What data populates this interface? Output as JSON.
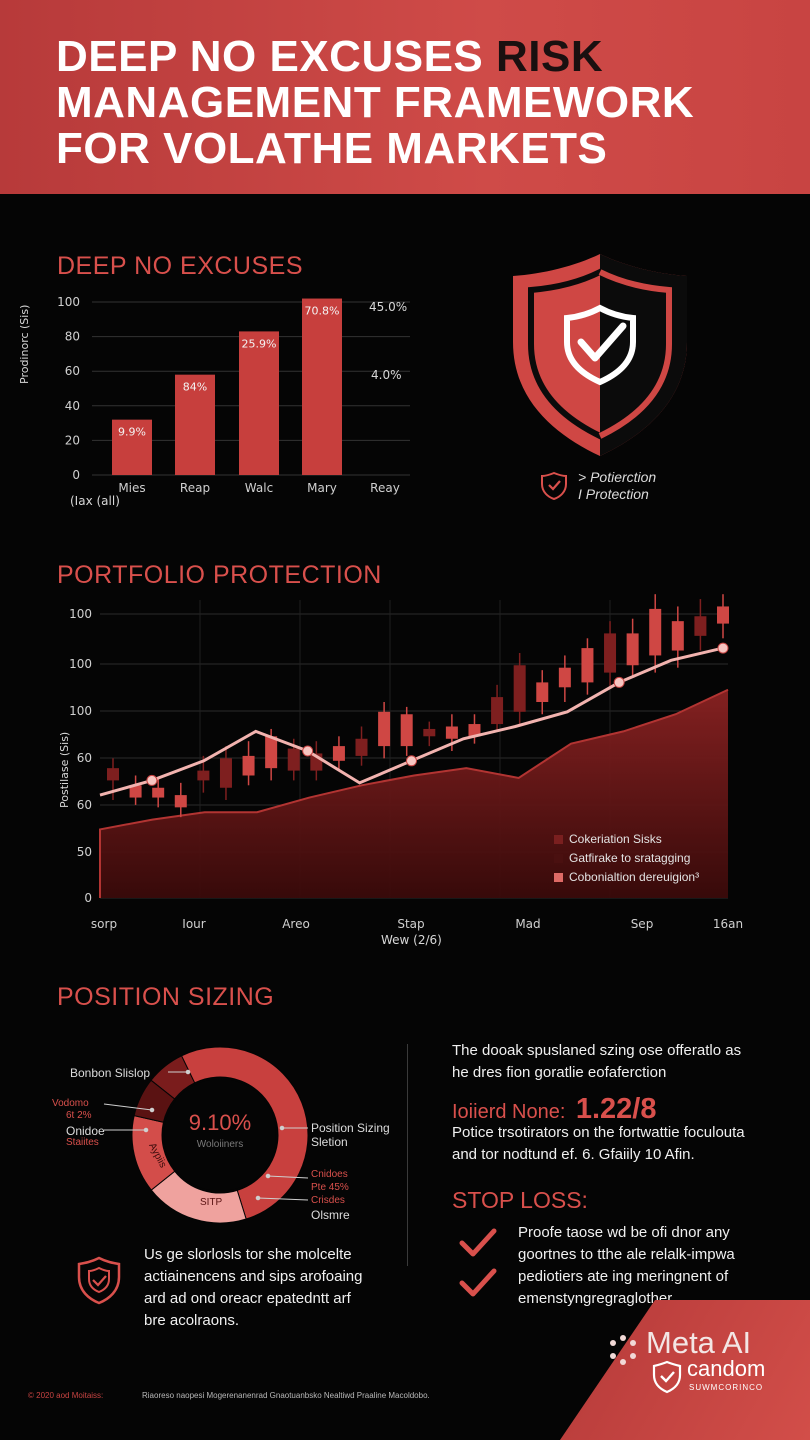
{
  "header": {
    "title_white_1": "DEEP NO EXCUSES ",
    "title_dark": "RISK",
    "title_white_2": "MANAGEMENT FRAMEWORK",
    "title_white_3": "FOR VOLATHE MARKETS"
  },
  "bar_section": {
    "title": "DEEP NO EXCUSES",
    "ylabel": "Prodinorc (Sis)",
    "xlabel_left": "(Iax (all)",
    "right_labels": [
      "45.0%",
      "4.0%"
    ],
    "chart_data": {
      "type": "bar",
      "categories": [
        "Mies",
        "Reap",
        "Walc",
        "Mary",
        "Reay"
      ],
      "values": [
        32,
        58,
        83,
        102,
        null
      ],
      "data_labels": [
        "9.9%",
        "84%",
        "25.9%",
        "70.8%",
        ""
      ],
      "yticks": [
        "0",
        "20",
        "40",
        "60",
        "80",
        "100"
      ],
      "ylim": [
        0,
        100
      ]
    }
  },
  "shield": {
    "label_1": "> Potierction",
    "label_2": "I Protection",
    "colors": {
      "red": "#cf4744",
      "dark": "#0b0b0b"
    }
  },
  "portfolio": {
    "title": "PORTFOLIO PROTECTION",
    "ylabel": "Postilase (Sis)",
    "xlabel": "Wew (2/6)",
    "legend": [
      {
        "label": "Cokeriation Sisks",
        "color": "#7a1f1f"
      },
      {
        "label": "Gatfirake to sratagging",
        "color": "#4a1010"
      },
      {
        "label": "Cobonialtion dereuigion³",
        "color": "#de6a66"
      }
    ],
    "chart_data": {
      "type": "candlestick+line+area",
      "yticks": [
        "0",
        "50",
        "60",
        "60",
        "100",
        "100",
        "100"
      ],
      "xticks": [
        "sorp",
        "Iour",
        "Areo",
        "Stap",
        "Mad",
        "Sep",
        "16an"
      ],
      "line_points": [
        62,
        68,
        76,
        88,
        80,
        67,
        76,
        85,
        90,
        96,
        108,
        117,
        122
      ],
      "area_points": [
        48,
        52,
        55,
        55,
        61,
        66,
        70,
        73,
        69,
        83,
        88,
        95,
        105
      ],
      "candles": [
        {
          "o": 68,
          "c": 73,
          "h": 77,
          "l": 60,
          "dark": true
        },
        {
          "o": 66,
          "c": 61,
          "h": 70,
          "l": 58,
          "dark": false
        },
        {
          "o": 65,
          "c": 61,
          "h": 69,
          "l": 57,
          "dark": false
        },
        {
          "o": 62,
          "c": 57,
          "h": 67,
          "l": 53,
          "dark": false
        },
        {
          "o": 68,
          "c": 72,
          "h": 78,
          "l": 63,
          "dark": true
        },
        {
          "o": 65,
          "c": 77,
          "h": 82,
          "l": 60,
          "dark": true
        },
        {
          "o": 70,
          "c": 78,
          "h": 84,
          "l": 66,
          "dark": false
        },
        {
          "o": 73,
          "c": 86,
          "h": 89,
          "l": 68,
          "dark": false
        },
        {
          "o": 72,
          "c": 81,
          "h": 85,
          "l": 68,
          "dark": true
        },
        {
          "o": 72,
          "c": 79,
          "h": 84,
          "l": 68,
          "dark": true
        },
        {
          "o": 76,
          "c": 82,
          "h": 86,
          "l": 72,
          "dark": false
        },
        {
          "o": 78,
          "c": 85,
          "h": 90,
          "l": 74,
          "dark": true
        },
        {
          "o": 82,
          "c": 96,
          "h": 100,
          "l": 77,
          "dark": false
        },
        {
          "o": 82,
          "c": 95,
          "h": 98,
          "l": 78,
          "dark": false
        },
        {
          "o": 86,
          "c": 89,
          "h": 92,
          "l": 82,
          "dark": true
        },
        {
          "o": 85,
          "c": 90,
          "h": 95,
          "l": 80,
          "dark": false
        },
        {
          "o": 86,
          "c": 91,
          "h": 95,
          "l": 83,
          "dark": false
        },
        {
          "o": 91,
          "c": 102,
          "h": 107,
          "l": 88,
          "dark": true
        },
        {
          "o": 96,
          "c": 115,
          "h": 120,
          "l": 90,
          "dark": true
        },
        {
          "o": 100,
          "c": 108,
          "h": 113,
          "l": 95,
          "dark": false
        },
        {
          "o": 106,
          "c": 114,
          "h": 119,
          "l": 100,
          "dark": false
        },
        {
          "o": 108,
          "c": 122,
          "h": 126,
          "l": 103,
          "dark": false
        },
        {
          "o": 112,
          "c": 128,
          "h": 133,
          "l": 106,
          "dark": true
        },
        {
          "o": 115,
          "c": 128,
          "h": 134,
          "l": 110,
          "dark": false
        },
        {
          "o": 119,
          "c": 138,
          "h": 144,
          "l": 112,
          "dark": false
        },
        {
          "o": 121,
          "c": 133,
          "h": 139,
          "l": 114,
          "dark": false
        },
        {
          "o": 127,
          "c": 135,
          "h": 142,
          "l": 121,
          "dark": true
        },
        {
          "o": 132,
          "c": 139,
          "h": 144,
          "l": 126,
          "dark": false
        }
      ]
    }
  },
  "position_sizing": {
    "title": "POSITION SIZING",
    "donut_center_value": "9.10%",
    "donut_center_sub": "Woloiiners",
    "labels_left": [
      "Bonbon Slislop",
      "Vodomo",
      "6t 2%",
      "Onidoe",
      "Staiites"
    ],
    "labels_right": [
      "Position Sizing",
      "Sletion",
      "Cnidoes",
      "Pte 45%",
      "Crisdes",
      "Olsmre"
    ],
    "segment_labels": [
      "Aypiis",
      "SITP"
    ],
    "colors": {
      "main": "#c8403e",
      "dark": "#5a1212",
      "pale": "#f1a09c"
    },
    "chart_data": {
      "type": "pie",
      "values": [
        6,
        44,
        16,
        12,
        6
      ],
      "colors": [
        "#7a1c1c",
        "#c8403e",
        "#efa29e",
        "#d34d4a",
        "#5a1212"
      ]
    },
    "note": [
      "Us ge slorlosls tor she molcelte",
      "actiainencens and sips arofoaing",
      "ard ad ond oreacr epatedntt arf",
      "bre acolraons."
    ]
  },
  "right_column": {
    "para": [
      "The dooak spuslaned szing ose offeratlo as",
      "he dres fion goratlie eofaferction"
    ],
    "highlight_label": "Ioiierd None:",
    "highlight_value": "1.22/8",
    "para2": [
      "Potice trsotirators on the fortwattie foculouta",
      "and tor nodtund ef. 6. Gfaiily 10 Afin."
    ],
    "stop_loss_title": "STOP LOSS:",
    "stop_loss_text": [
      "Proofe taose wd be ofi dnor any",
      "goortnes to tthe ale relalk-impwa",
      "pediotiers ate ing meringnent of",
      "emenstyngregraglother."
    ]
  },
  "footer": {
    "copyright": "© 2020 aod Moitaiss:",
    "text": "Riaoreso naopesi Mogerenanenrad Gnaotuanbsko Nealtiwd Praaline Macoldobo.",
    "watermark": "Meta AI",
    "brand": "candom",
    "brand_sub": "SUWMCORINCO"
  }
}
